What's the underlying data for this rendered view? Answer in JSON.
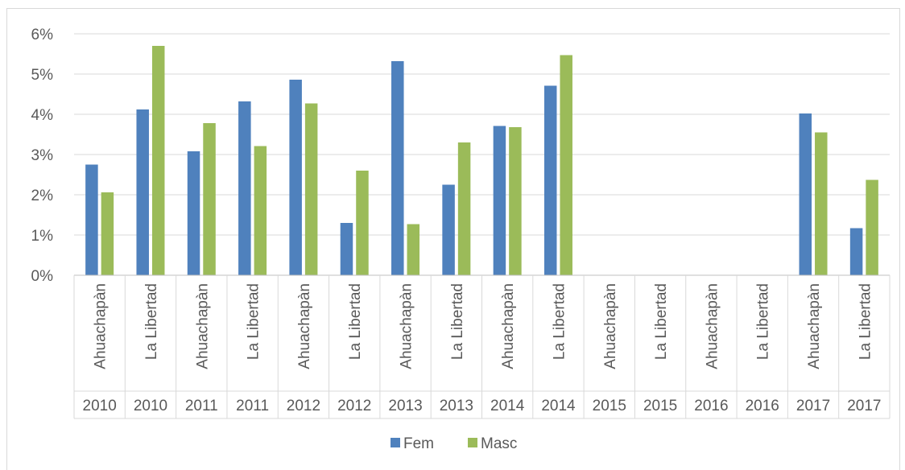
{
  "chart_data": {
    "type": "bar",
    "categories": [
      {
        "region": "Ahuachapàn",
        "year": "2010"
      },
      {
        "region": "La Libertad",
        "year": "2010"
      },
      {
        "region": "Ahuachapàn",
        "year": "2011"
      },
      {
        "region": "La Libertad",
        "year": "2011"
      },
      {
        "region": "Ahuachapàn",
        "year": "2012"
      },
      {
        "region": "La Libertad",
        "year": "2012"
      },
      {
        "region": "Ahuachapàn",
        "year": "2013"
      },
      {
        "region": "La Libertad",
        "year": "2013"
      },
      {
        "region": "Ahuachapàn",
        "year": "2014"
      },
      {
        "region": "La Libertad",
        "year": "2014"
      },
      {
        "region": "Ahuachapàn",
        "year": "2015"
      },
      {
        "region": "La Libertad",
        "year": "2015"
      },
      {
        "region": "Ahuachapàn",
        "year": "2016"
      },
      {
        "region": "La Libertad",
        "year": "2016"
      },
      {
        "region": "Ahuachapàn",
        "year": "2017"
      },
      {
        "region": "La Libertad",
        "year": "2017"
      }
    ],
    "series": [
      {
        "name": "Fem",
        "color": "#4f81bd",
        "values": [
          2.75,
          4.12,
          3.08,
          4.32,
          4.86,
          1.3,
          5.32,
          2.25,
          3.71,
          4.71,
          0,
          0,
          0,
          0,
          4.02,
          1.17
        ]
      },
      {
        "name": "Masc",
        "color": "#9bbb59",
        "values": [
          2.06,
          5.7,
          3.78,
          3.21,
          4.27,
          2.6,
          1.27,
          3.3,
          3.68,
          5.47,
          0,
          0,
          0,
          0,
          3.55,
          2.37
        ]
      }
    ],
    "y_ticks": [
      "0%",
      "1%",
      "2%",
      "3%",
      "4%",
      "5%",
      "6%"
    ],
    "ylim": [
      0,
      6
    ],
    "title": "",
    "xlabel": "",
    "ylabel": "",
    "grid": true,
    "legend_position": "bottom-center"
  }
}
